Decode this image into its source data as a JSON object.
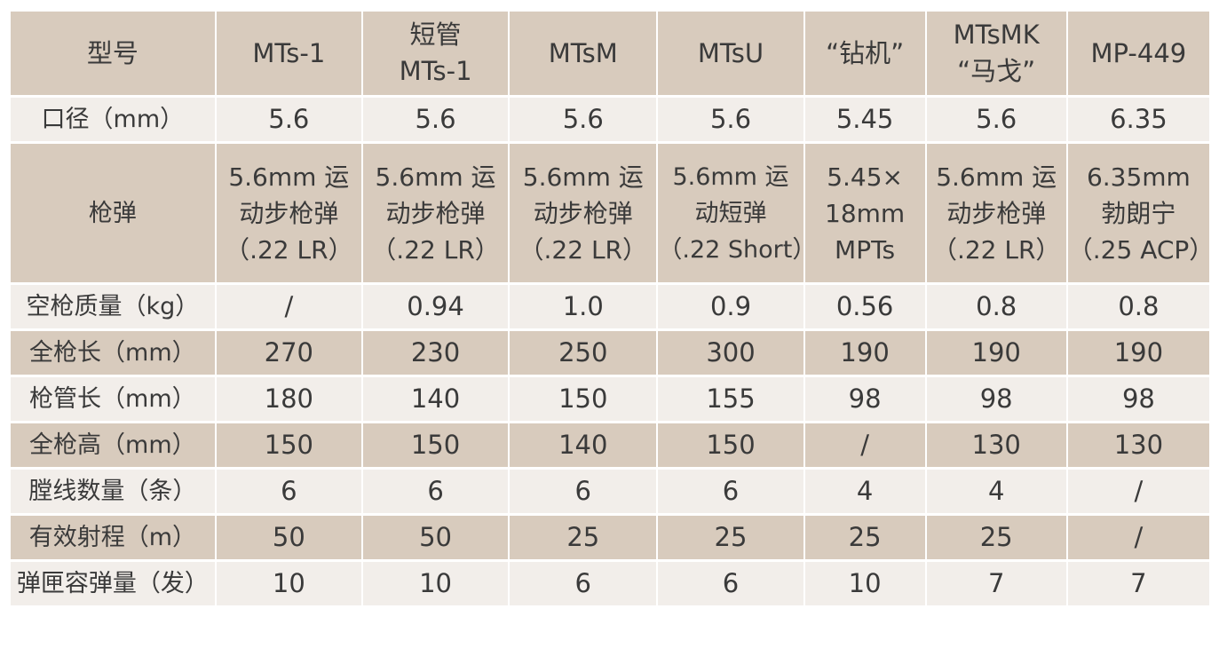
{
  "table": {
    "columns": [
      {
        "lines": [
          "型号"
        ]
      },
      {
        "lines": [
          "MTs-1"
        ]
      },
      {
        "lines": [
          "短管",
          "MTs-1"
        ]
      },
      {
        "lines": [
          "MTsM"
        ]
      },
      {
        "lines": [
          "MTsU"
        ]
      },
      {
        "lines": [
          "“钻机”"
        ]
      },
      {
        "lines": [
          "MTsMK",
          "“马戈”"
        ]
      },
      {
        "lines": [
          "MP-449"
        ]
      }
    ],
    "caliber": {
      "label": "口径（mm）",
      "values": [
        "5.6",
        "5.6",
        "5.6",
        "5.6",
        "5.45",
        "5.6",
        "6.35"
      ]
    },
    "ammo": {
      "label": "枪弹",
      "values": [
        [
          "5.6mm 运",
          "动步枪弹",
          "（.22 LR）"
        ],
        [
          "5.6mm 运",
          "动步枪弹",
          "（.22 LR）"
        ],
        [
          "5.6mm 运",
          "动步枪弹",
          "（.22 LR）"
        ],
        [
          "5.6mm 运",
          "动短弹",
          "（.22 Short）"
        ],
        [
          "5.45×",
          "18mm",
          "MPTs"
        ],
        [
          "5.6mm 运",
          "动步枪弹",
          "（.22 LR）"
        ],
        [
          "6.35mm",
          "勃朗宁",
          "（.25 ACP）"
        ]
      ]
    },
    "rows": [
      {
        "key": "empty-weight",
        "label": "空枪质量（kg）",
        "values": [
          "/",
          "0.94",
          "1.0",
          "0.9",
          "0.56",
          "0.8",
          "0.8"
        ]
      },
      {
        "key": "overall-length",
        "label": "全枪长（mm）",
        "values": [
          "270",
          "230",
          "250",
          "300",
          "190",
          "190",
          "190"
        ]
      },
      {
        "key": "barrel-length",
        "label": "枪管长（mm）",
        "values": [
          "180",
          "140",
          "150",
          "155",
          "98",
          "98",
          "98"
        ]
      },
      {
        "key": "overall-height",
        "label": "全枪高（mm）",
        "values": [
          "150",
          "150",
          "140",
          "150",
          "/",
          "130",
          "130"
        ]
      },
      {
        "key": "rifling-count",
        "label": "膛线数量（条）",
        "values": [
          "6",
          "6",
          "6",
          "6",
          "4",
          "4",
          "/"
        ]
      },
      {
        "key": "effective-range",
        "label": "有效射程（m）",
        "values": [
          "50",
          "50",
          "25",
          "25",
          "25",
          "25",
          "/"
        ]
      },
      {
        "key": "magazine-capacity",
        "label": "弹匣容弹量（发）",
        "values": [
          "10",
          "10",
          "6",
          "6",
          "10",
          "7",
          "7"
        ]
      }
    ]
  }
}
